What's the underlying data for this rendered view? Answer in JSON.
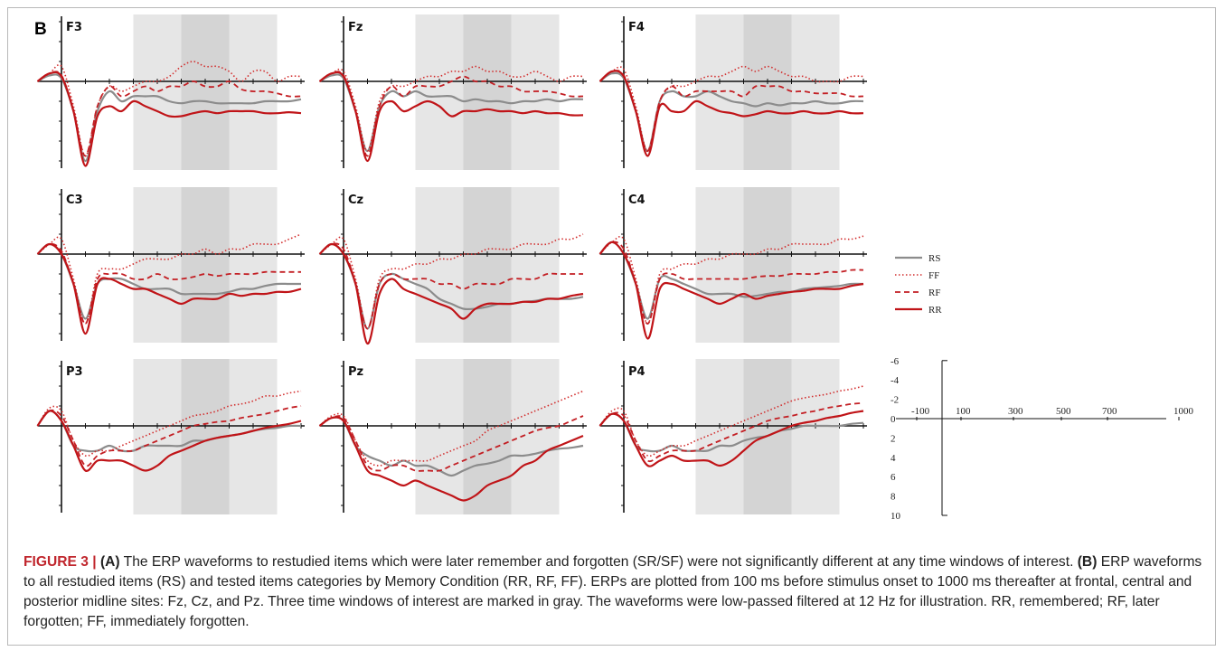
{
  "panel_letter": "B",
  "colors": {
    "RS": "#8c8c8c",
    "FF": "#d22e2e",
    "RF": "#c31f24",
    "RR": "#c01418",
    "window_light": "#e6e6e6",
    "window_dark": "#d4d4d4"
  },
  "chart_data": {
    "type": "line",
    "x_range_ms": [
      -100,
      1000
    ],
    "y_range_uV": [
      -6,
      10
    ],
    "y_axis_negative_up": true,
    "time_windows_ms": [
      [
        300,
        500
      ],
      [
        500,
        700
      ],
      [
        700,
        900
      ]
    ],
    "legend": [
      "RS",
      "FF",
      "RF",
      "RR"
    ],
    "line_styles": {
      "RS": "solid-gray",
      "FF": "dotted",
      "RF": "dashed",
      "RR": "solid-red"
    },
    "series_x_ms": [
      -100,
      -50,
      0,
      50,
      100,
      150,
      200,
      250,
      300,
      350,
      400,
      450,
      500,
      550,
      600,
      650,
      700,
      750,
      800,
      850,
      900,
      950,
      1000
    ],
    "panels": [
      {
        "site": "F3",
        "series": {
          "RR": [
            0,
            -0.8,
            -0.5,
            3,
            8.5,
            3.5,
            2.5,
            3,
            2,
            2.5,
            3,
            3.5,
            3.5,
            3.2,
            3.0,
            3.2,
            3.0,
            3.0,
            3.0,
            3.2,
            3.2,
            3.1,
            3.2
          ],
          "RS": [
            0,
            -0.6,
            -0.3,
            3,
            8.0,
            3.0,
            1.0,
            2.0,
            1.5,
            1.5,
            1.5,
            2.0,
            2.2,
            2.0,
            2.0,
            2.2,
            2.2,
            2.2,
            2.2,
            2.0,
            2.0,
            2.0,
            1.8
          ],
          "RF": [
            0,
            -0.8,
            -0.6,
            3,
            7.5,
            2.5,
            0.5,
            1.5,
            1.0,
            0.5,
            1.0,
            0.5,
            0.5,
            0.0,
            0.5,
            0.5,
            0.0,
            0.8,
            1.0,
            1.0,
            1.2,
            1.5,
            1.5
          ],
          "FF": [
            0,
            -0.8,
            -1.5,
            2.5,
            7.5,
            2.5,
            0.5,
            1.0,
            0.5,
            0.0,
            0.0,
            -0.5,
            -1.5,
            -2.0,
            -1.5,
            -1.5,
            -1.0,
            0.0,
            -1.0,
            -1.0,
            0.0,
            -0.5,
            -0.5
          ]
        }
      },
      {
        "site": "Fz",
        "series": {
          "RR": [
            0,
            -0.8,
            -0.5,
            3,
            8.0,
            3.0,
            2.0,
            3.0,
            2.5,
            2.0,
            2.5,
            3.5,
            3.0,
            3.0,
            2.8,
            3.0,
            3.0,
            3.2,
            3.0,
            3.2,
            3.2,
            3.4,
            3.4
          ],
          "RS": [
            0,
            -0.6,
            -0.3,
            3,
            7.0,
            2.5,
            1.0,
            1.5,
            1.0,
            1.5,
            1.5,
            1.5,
            2.0,
            1.8,
            2.0,
            2.0,
            2.2,
            2.0,
            2.0,
            1.8,
            2.0,
            1.8,
            1.8
          ],
          "RF": [
            0,
            -0.8,
            -0.6,
            3,
            7.5,
            2.5,
            0.5,
            1.5,
            0.5,
            0.5,
            0.5,
            0.0,
            -0.5,
            0.0,
            0.0,
            0.5,
            0.5,
            1.0,
            1.0,
            1.0,
            1.2,
            1.5,
            1.5
          ],
          "FF": [
            0,
            -0.8,
            -1.0,
            2.5,
            7.0,
            2.0,
            0.5,
            0.5,
            0.0,
            -0.5,
            -0.5,
            -1.0,
            -1.0,
            -1.5,
            -1.0,
            -1.0,
            -0.5,
            -0.5,
            -1.0,
            -0.5,
            0.0,
            -0.5,
            -0.5
          ]
        }
      },
      {
        "site": "F4",
        "series": {
          "RR": [
            0,
            -1.0,
            -0.5,
            3,
            7.5,
            2.5,
            3.0,
            3.0,
            2.0,
            2.5,
            3.0,
            3.2,
            3.5,
            3.3,
            3.0,
            3.2,
            3.2,
            3.0,
            3.2,
            3.2,
            3.0,
            3.2,
            3.2
          ],
          "RS": [
            0,
            -0.8,
            -0.3,
            3,
            7.0,
            2.0,
            1.0,
            1.5,
            1.5,
            1.0,
            1.5,
            2.0,
            2.2,
            2.5,
            2.2,
            2.4,
            2.2,
            2.2,
            2.0,
            2.2,
            2.2,
            2.0,
            2.0
          ],
          "RF": [
            0,
            -1.0,
            -0.6,
            3,
            7.0,
            2.0,
            0.5,
            1.5,
            1.0,
            1.0,
            1.0,
            1.0,
            1.5,
            0.5,
            0.5,
            0.5,
            1.0,
            1.0,
            1.2,
            1.2,
            1.2,
            1.5,
            1.5
          ],
          "FF": [
            0,
            -1.0,
            -1.2,
            2.5,
            7.0,
            2.0,
            0.5,
            0.5,
            0.0,
            -0.5,
            -0.5,
            -1.0,
            -1.5,
            -1.0,
            -1.5,
            -1.0,
            -0.5,
            -0.5,
            0.0,
            0.0,
            0.0,
            -0.5,
            -0.5
          ]
        }
      },
      {
        "site": "C3",
        "series": {
          "RR": [
            0,
            -1.0,
            0.0,
            3,
            8.0,
            3.0,
            2.5,
            3.0,
            3.5,
            3.5,
            4.0,
            4.5,
            5.0,
            4.5,
            4.5,
            4.5,
            4.0,
            4.2,
            4.0,
            4.0,
            3.8,
            3.8,
            3.5
          ],
          "RS": [
            0,
            -1.0,
            0.0,
            3,
            6.5,
            3.0,
            2.5,
            2.5,
            3.0,
            3.5,
            3.5,
            3.5,
            4.0,
            4.0,
            4.0,
            4.0,
            3.8,
            3.5,
            3.5,
            3.2,
            3.0,
            3.0,
            3.0
          ],
          "RF": [
            0,
            -1.0,
            -0.3,
            3,
            7.0,
            2.5,
            2.0,
            2.0,
            2.5,
            2.5,
            2.0,
            2.5,
            2.5,
            2.3,
            2.0,
            2.2,
            2.0,
            2.0,
            2.0,
            1.8,
            1.8,
            1.8,
            1.8
          ],
          "FF": [
            0,
            -1.0,
            -1.5,
            2.5,
            7.0,
            2.0,
            1.5,
            1.5,
            1.0,
            0.5,
            0.5,
            0.5,
            0.0,
            0.0,
            -0.5,
            0.0,
            -0.5,
            -0.5,
            -1.0,
            -1.0,
            -1.0,
            -1.5,
            -2.0
          ]
        }
      },
      {
        "site": "Cz",
        "series": {
          "RR": [
            0,
            -1.0,
            0.0,
            3,
            9.0,
            4.0,
            2.5,
            3.5,
            4.0,
            4.5,
            5.0,
            5.5,
            6.5,
            5.5,
            5.0,
            5.0,
            5.0,
            4.8,
            4.8,
            4.5,
            4.5,
            4.2,
            4.0
          ],
          "RS": [
            0,
            -1.0,
            0.0,
            3,
            7.5,
            3.0,
            2.0,
            2.5,
            3.0,
            3.5,
            4.5,
            5.0,
            5.5,
            5.5,
            5.3,
            5.0,
            5.0,
            4.8,
            4.7,
            4.5,
            4.5,
            4.5,
            4.3
          ],
          "RF": [
            0,
            -1.0,
            -0.5,
            3,
            7.5,
            3.0,
            2.0,
            2.5,
            2.5,
            2.5,
            3.0,
            3.0,
            3.5,
            3.0,
            3.0,
            3.0,
            2.5,
            2.5,
            2.5,
            2.0,
            2.0,
            2.0,
            2.0
          ],
          "FF": [
            0,
            -1.0,
            -1.5,
            2.5,
            7.5,
            2.5,
            1.5,
            1.5,
            1.0,
            1.0,
            0.5,
            0.5,
            0.0,
            0.0,
            -0.5,
            -0.5,
            -0.5,
            -1.0,
            -1.0,
            -1.0,
            -1.5,
            -1.5,
            -2.0
          ]
        }
      },
      {
        "site": "C4",
        "series": {
          "RR": [
            0,
            -1.2,
            0.0,
            3,
            8.5,
            3.5,
            3.0,
            3.5,
            4.0,
            4.5,
            5.0,
            4.5,
            4.0,
            4.5,
            4.2,
            4.0,
            3.8,
            3.7,
            3.5,
            3.5,
            3.5,
            3.2,
            3.0
          ],
          "RS": [
            0,
            -1.2,
            0.0,
            3,
            6.5,
            2.5,
            2.5,
            3.0,
            3.5,
            4.0,
            4.0,
            4.0,
            4.3,
            4.2,
            4.0,
            3.8,
            3.8,
            3.5,
            3.4,
            3.3,
            3.2,
            3.0,
            3.0
          ],
          "RF": [
            0,
            -1.2,
            -0.5,
            3,
            7.0,
            2.5,
            2.0,
            2.5,
            2.5,
            2.5,
            2.5,
            2.5,
            2.5,
            2.3,
            2.2,
            2.2,
            2.0,
            2.0,
            2.0,
            1.8,
            1.8,
            1.6,
            1.6
          ],
          "FF": [
            0,
            -1.2,
            -1.5,
            2.5,
            7.0,
            2.0,
            1.5,
            1.0,
            1.0,
            0.5,
            0.5,
            0.0,
            0.0,
            0.0,
            -0.5,
            -0.5,
            -1.0,
            -1.0,
            -1.0,
            -1.0,
            -1.5,
            -1.5,
            -1.8
          ]
        }
      },
      {
        "site": "P3",
        "series": {
          "RR": [
            0,
            -1.5,
            -0.5,
            2,
            4.5,
            3.5,
            3.5,
            3.5,
            4.0,
            4.5,
            4.0,
            3.0,
            2.5,
            2.0,
            1.5,
            1.2,
            1.0,
            0.8,
            0.5,
            0.2,
            0.0,
            -0.2,
            -0.5
          ],
          "RS": [
            0,
            -1.5,
            -0.5,
            2,
            2.5,
            2.5,
            2.0,
            2.5,
            2.5,
            2.0,
            2.0,
            2.0,
            2.0,
            1.5,
            1.5,
            1.2,
            1.0,
            0.8,
            0.5,
            0.3,
            0.2,
            0.0,
            0.0
          ],
          "RF": [
            0,
            -1.5,
            -1.0,
            1.5,
            4.0,
            3.0,
            2.5,
            2.5,
            2.5,
            2.0,
            1.5,
            1.0,
            0.5,
            0.0,
            -0.2,
            -0.4,
            -0.5,
            -0.8,
            -1.0,
            -1.2,
            -1.5,
            -1.8,
            -2.0
          ],
          "FF": [
            0,
            -1.8,
            -1.5,
            1.5,
            3.0,
            2.5,
            2.5,
            2.0,
            1.5,
            1.0,
            0.5,
            0.0,
            -0.5,
            -1.0,
            -1.2,
            -1.5,
            -2.0,
            -2.2,
            -2.5,
            -3.0,
            -3.0,
            -3.3,
            -3.5
          ]
        }
      },
      {
        "site": "Pz",
        "series": {
          "RR": [
            0,
            -0.8,
            -0.5,
            2,
            4.5,
            5.0,
            5.5,
            6.0,
            5.5,
            6.0,
            6.5,
            7.0,
            7.5,
            7.0,
            6.0,
            5.5,
            5.0,
            4.0,
            3.5,
            2.5,
            2.0,
            1.5,
            1.0
          ],
          "RS": [
            0,
            -0.8,
            -0.5,
            2,
            3.0,
            3.5,
            4.0,
            3.5,
            4.0,
            4.0,
            4.5,
            5.0,
            4.5,
            4.0,
            3.8,
            3.5,
            3.0,
            3.0,
            2.8,
            2.5,
            2.3,
            2.2,
            2.0
          ],
          "RF": [
            0,
            -0.8,
            -0.8,
            1.5,
            4.0,
            4.5,
            4.0,
            4.0,
            4.5,
            4.5,
            4.5,
            4.0,
            3.5,
            3.0,
            2.5,
            2.0,
            1.5,
            1.0,
            0.5,
            0.2,
            0.0,
            -0.5,
            -1.0
          ],
          "FF": [
            0,
            -1.0,
            -1.0,
            1.5,
            3.5,
            4.0,
            3.5,
            3.5,
            3.5,
            3.5,
            3.0,
            2.5,
            2.0,
            1.5,
            0.5,
            0.0,
            -0.5,
            -1.0,
            -1.5,
            -2.0,
            -2.5,
            -3.0,
            -3.5
          ]
        }
      },
      {
        "site": "P4",
        "series": {
          "RR": [
            0,
            -1.2,
            -0.5,
            2,
            4.0,
            3.5,
            3.0,
            3.5,
            3.5,
            3.5,
            4.0,
            3.5,
            2.5,
            1.5,
            1.0,
            0.5,
            0.0,
            -0.3,
            -0.5,
            -0.8,
            -1.0,
            -1.3,
            -1.5
          ],
          "RS": [
            0,
            -1.2,
            -0.5,
            2,
            2.5,
            2.5,
            2.0,
            2.5,
            2.5,
            2.5,
            2.0,
            2.0,
            1.5,
            1.2,
            1.0,
            0.5,
            0.3,
            0.0,
            0.0,
            0.0,
            0.0,
            -0.2,
            -0.3
          ],
          "RF": [
            0,
            -1.2,
            -1.0,
            1.5,
            3.5,
            3.0,
            2.5,
            2.5,
            2.5,
            2.0,
            1.5,
            1.0,
            0.5,
            0.0,
            -0.5,
            -0.8,
            -1.0,
            -1.3,
            -1.5,
            -1.8,
            -2.0,
            -2.2,
            -2.3
          ],
          "FF": [
            0,
            -1.5,
            -1.5,
            1.5,
            3.0,
            2.5,
            2.0,
            2.0,
            1.5,
            1.0,
            0.5,
            0.0,
            -0.5,
            -1.0,
            -1.5,
            -2.0,
            -2.5,
            -2.8,
            -3.0,
            -3.2,
            -3.5,
            -3.7,
            -4.0
          ]
        }
      }
    ],
    "scale": {
      "y_ticks": [
        "-6",
        "-4",
        "-2",
        "0",
        "2",
        "4",
        "6",
        "8",
        "10"
      ],
      "x_ticks": [
        "-100",
        "100",
        "300",
        "500",
        "700",
        "1000"
      ]
    }
  },
  "caption": {
    "label": "FIGURE 3 |",
    "a_marker": "(A)",
    "a_text": " The ERP waveforms to restudied items which were later remember and forgotten (SR/SF) were not significantly different at any time windows of interest. ",
    "b_marker": "(B)",
    "b_text": " ERP waveforms to all restudied items (RS) and tested items categories by Memory Condition (RR, RF, FF). ERPs are plotted from 100 ms before stimulus onset to 1000 ms thereafter at frontal, central and posterior midline sites: Fz, Cz, and Pz. Three time windows of interest are marked in gray. The waveforms were low-passed filtered at 12 Hz for illustration. RR, remembered; RF, later forgotten; FF, immediately forgotten."
  }
}
